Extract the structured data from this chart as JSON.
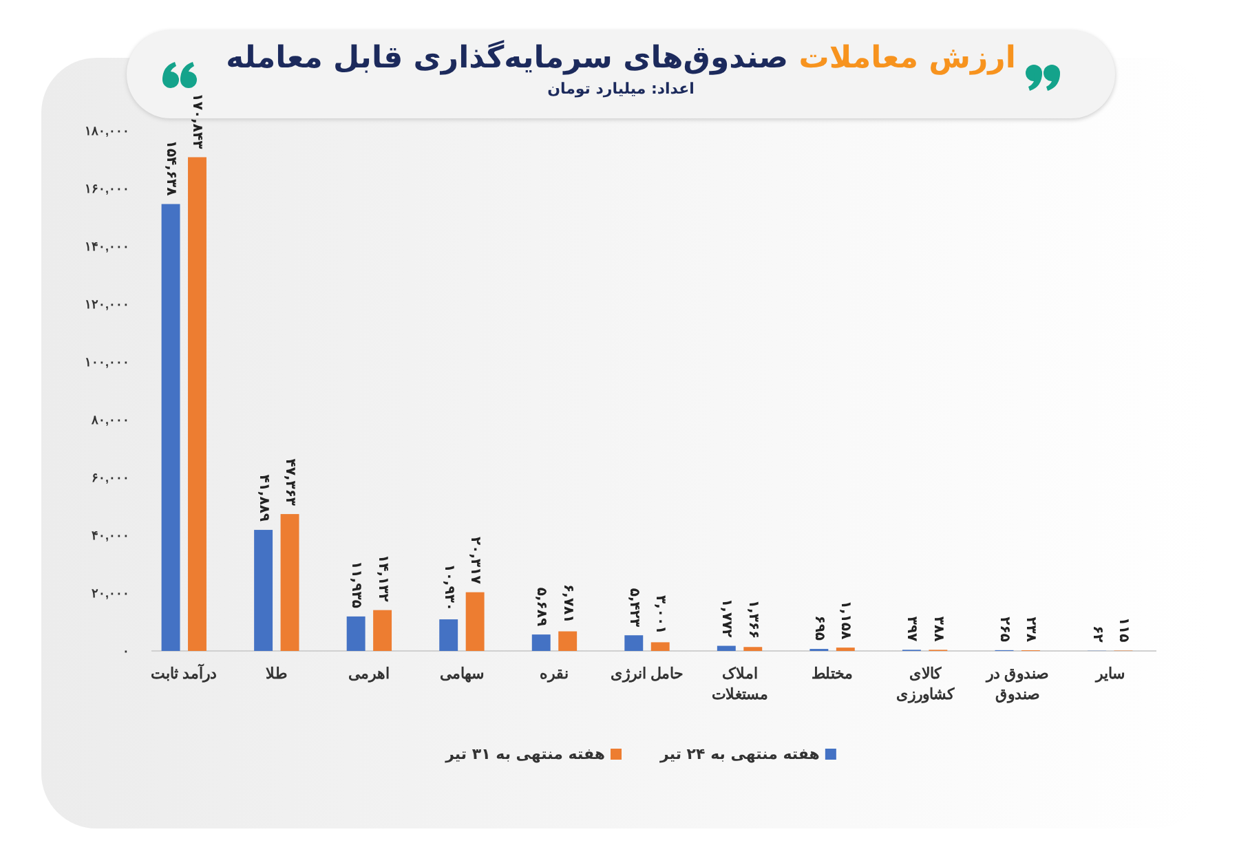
{
  "chart_data": {
    "type": "bar",
    "title": "ارزش معاملات صندوق‌های سرمایه‌گذاری قابل معامله",
    "subtitle": "اعداد: میلیارد تومان",
    "categories": [
      "درآمد ثابت",
      "طلا",
      "اهرمی",
      "سهامی",
      "نقره",
      "حامل انرژی",
      "املاک مستغلات",
      "مختلط",
      "کالای کشاورزی",
      "صندوق در صندوق",
      "سایر"
    ],
    "series": [
      {
        "name": "هفته منتهی به ۲۴ تیر",
        "color": "#4472c4",
        "values": [
          154638,
          41889,
          11935,
          10930,
          5689,
          5423,
          1772,
          695,
          397,
          265,
          62
        ],
        "value_labels": [
          "۱۵۴,۶۳۸",
          "۴۱,۸۸۹",
          "۱۱,۹۳۵",
          "۱۰,۹۳۰",
          "۵,۶۸۹",
          "۵,۴۲۳",
          "۱,۷۷۲",
          "۶۹۵",
          "۳۹۷",
          "۲۶۵",
          "۶۲"
        ]
      },
      {
        "name": "هفته منتهی به ۳۱ تیر",
        "color": "#ed7d31",
        "values": [
          170843,
          47363,
          14132,
          20317,
          6781,
          3001,
          1366,
          1158,
          388,
          238,
          115
        ],
        "value_labels": [
          "۱۷۰,۸۴۳",
          "۴۷,۳۶۳",
          "۱۴,۱۳۲",
          "۲۰,۳۱۷",
          "۶,۷۸۱",
          "۳,۰۰۱",
          "۱,۳۶۶",
          "۱,۱۵۸",
          "۳۸۸",
          "۲۳۸",
          "۱۱۵"
        ]
      }
    ],
    "ylim": [
      0,
      180000
    ],
    "yticks": [
      {
        "value": 0,
        "label": "۰"
      },
      {
        "value": 20000,
        "label": "۲۰,۰۰۰"
      },
      {
        "value": 40000,
        "label": "۴۰,۰۰۰"
      },
      {
        "value": 60000,
        "label": "۶۰,۰۰۰"
      },
      {
        "value": 80000,
        "label": "۸۰,۰۰۰"
      },
      {
        "value": 100000,
        "label": "۱۰۰,۰۰۰"
      },
      {
        "value": 120000,
        "label": "۱۲۰,۰۰۰"
      },
      {
        "value": 140000,
        "label": "۱۴۰,۰۰۰"
      },
      {
        "value": 160000,
        "label": "۱۶۰,۰۰۰"
      },
      {
        "value": 180000,
        "label": "۱۸۰,۰۰۰"
      }
    ],
    "grid": false,
    "legend": "bottom"
  }
}
